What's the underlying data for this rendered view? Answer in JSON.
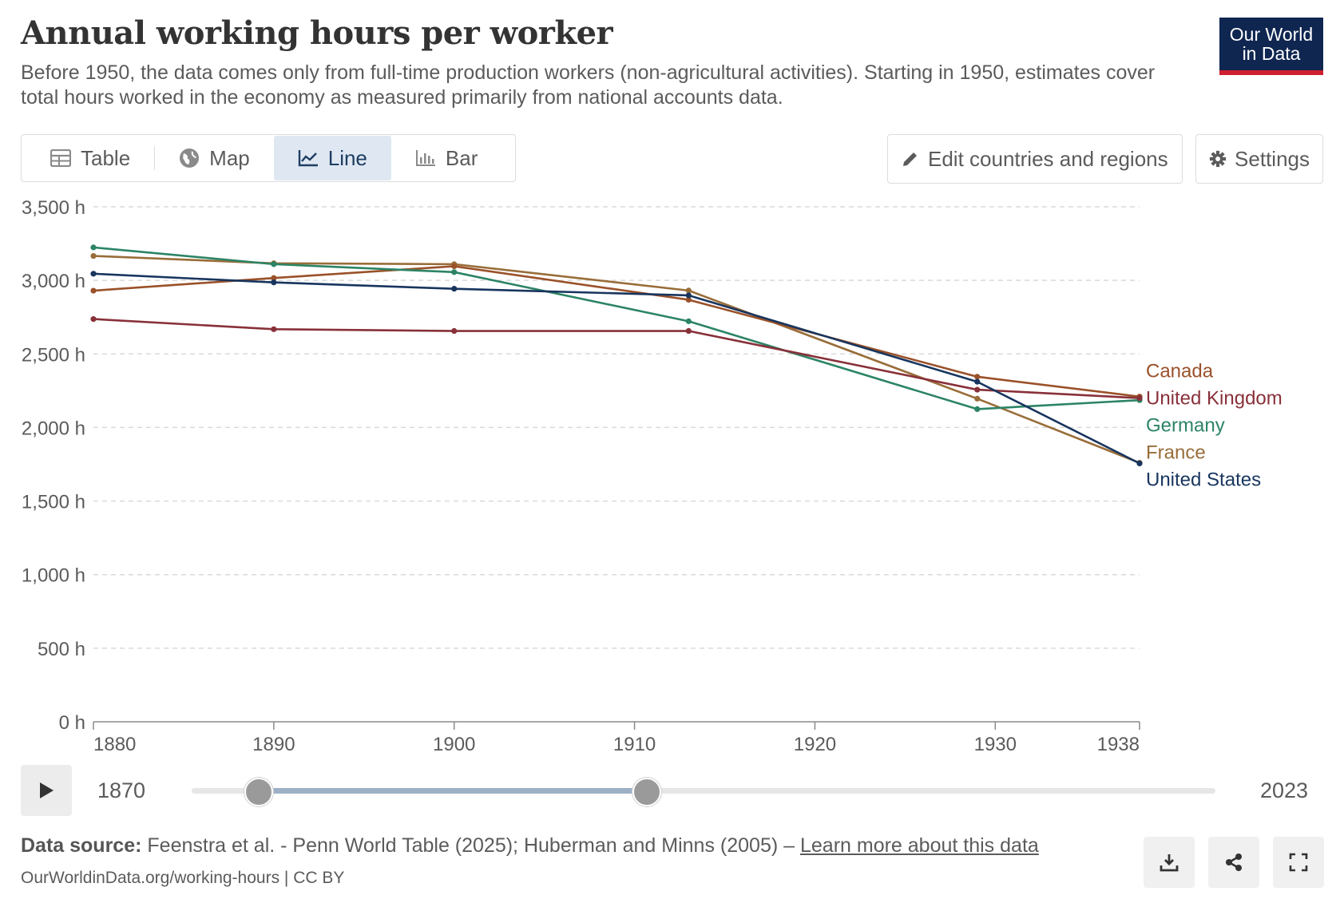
{
  "header": {
    "title": "Annual working hours per worker",
    "subtitle": "Before 1950, the data comes only from full-time production workers (non-agricultural activities). Starting in 1950, estimates cover total hours worked in the economy as measured primarily from national accounts data.",
    "logo_line1": "Our World",
    "logo_line2": "in Data"
  },
  "tabs": [
    {
      "label": "Table",
      "icon": "table-icon"
    },
    {
      "label": "Map",
      "icon": "globe-icon"
    },
    {
      "label": "Line",
      "icon": "line-chart-icon",
      "active": true
    },
    {
      "label": "Bar",
      "icon": "bar-chart-icon"
    }
  ],
  "actions": {
    "edit_label": "Edit countries and regions",
    "settings_label": "Settings"
  },
  "timeline": {
    "start_label": "1870",
    "end_label": "2023",
    "range": [
      1870,
      2023
    ],
    "selected": [
      1880,
      1938
    ]
  },
  "footer": {
    "source_prefix": "Data source:",
    "source_text": "Feenstra et al. - Penn World Table (2025); Huberman and Minns (2005) –",
    "learn_more": "Learn more about this data",
    "url_text": "OurWorldinData.org/working-hours | CC BY"
  },
  "colors": {
    "Canada": "#9a5129",
    "United Kingdom": "#883039",
    "Germany": "#2c8465",
    "France": "#996d39",
    "United States": "#18355e"
  },
  "chart_data": {
    "type": "line",
    "x": [
      1880,
      1890,
      1900,
      1913,
      1929,
      1938
    ],
    "xlim": [
      1880,
      1938
    ],
    "ylim": [
      0,
      3500
    ],
    "xticks": [
      1880,
      1890,
      1900,
      1910,
      1920,
      1930,
      1938
    ],
    "yticks": [
      0,
      500,
      1000,
      1500,
      2000,
      2500,
      3000,
      3500
    ],
    "ytick_labels": [
      "0 h",
      "500 h",
      "1,000 h",
      "1,500 h",
      "2,000 h",
      "2,500 h",
      "3,000 h",
      "3,500 h"
    ],
    "grid": "horizontal dashed",
    "legend": "right end labels",
    "series": [
      {
        "name": "Canada",
        "values": [
          2930,
          3016,
          3096,
          2868,
          2345,
          2210
        ]
      },
      {
        "name": "United Kingdom",
        "values": [
          2737,
          2668,
          2656,
          2656,
          2257,
          2200
        ]
      },
      {
        "name": "Germany",
        "values": [
          3224,
          3110,
          3056,
          2722,
          2125,
          2186
        ]
      },
      {
        "name": "France",
        "values": [
          3166,
          3116,
          3110,
          2931,
          2196,
          1760
        ]
      },
      {
        "name": "United States",
        "values": [
          3045,
          2986,
          2943,
          2898,
          2311,
          1756
        ]
      }
    ]
  }
}
